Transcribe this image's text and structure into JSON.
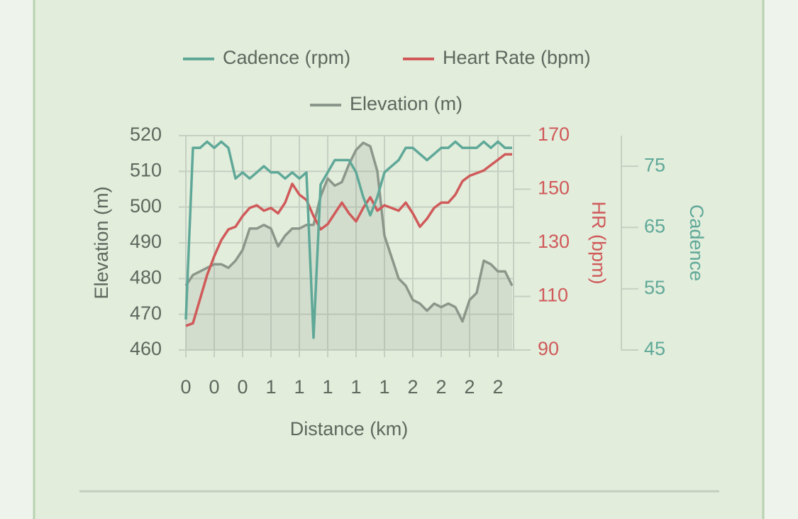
{
  "chart_data": {
    "type": "line",
    "legend": [
      {
        "name": "Cadence (rpm)",
        "color": "#5fa898"
      },
      {
        "name": "Heart Rate (bpm)",
        "color": "#d05a5a"
      },
      {
        "name": "Elevation (m)",
        "color": "#8c978b"
      }
    ],
    "x_label": "Distance (km)",
    "y_label": "Elevation (m)",
    "y2_label": "HR (bpm)",
    "y3_label": "Cadence",
    "grid": true,
    "x": [
      0,
      0.05,
      0.1,
      0.15,
      0.2,
      0.25,
      0.3,
      0.35,
      0.4,
      0.45,
      0.5,
      0.55,
      0.6,
      0.65,
      0.7,
      0.75,
      0.8,
      0.85,
      0.9,
      0.95,
      1.0,
      1.05,
      1.1,
      1.15,
      1.2,
      1.25,
      1.3,
      1.35,
      1.4,
      1.45,
      1.5,
      1.55,
      1.6,
      1.65,
      1.7,
      1.75,
      1.8,
      1.85,
      1.9,
      1.95,
      2.0,
      2.05,
      2.1,
      2.15,
      2.2,
      2.25,
      2.3
    ],
    "xlim": [
      0,
      2.31
    ],
    "xticks": [
      0,
      {
        "value": 0.2,
        "label": "0"
      },
      {
        "value": 0.4,
        "label": "0"
      },
      {
        "value": 0.6,
        "label": "1"
      },
      {
        "value": 0.8,
        "label": "1"
      },
      {
        "value": 1.0,
        "label": "1"
      },
      {
        "value": 1.2,
        "label": "1"
      },
      {
        "value": 1.4,
        "label": "1"
      },
      {
        "value": 1.6,
        "label": "2"
      },
      {
        "value": 1.8,
        "label": "2"
      },
      2,
      {
        "value": 2.2,
        "label": "2"
      }
    ],
    "ylim": [
      460,
      520
    ],
    "yticks": [
      460,
      470,
      480,
      490,
      500,
      510,
      520
    ],
    "y2lim": [
      90,
      170
    ],
    "y2ticks": [
      90,
      110,
      130,
      150,
      170
    ],
    "y3lim": [
      45,
      80
    ],
    "y3ticks": [
      45,
      55,
      65,
      75
    ],
    "series": [
      {
        "name": "Cadence (rpm)",
        "color": "#5fa898",
        "axis": "y3",
        "values": [
          50,
          78,
          78,
          79,
          78,
          79,
          78,
          73,
          74,
          73,
          74,
          75,
          74,
          74,
          73,
          74,
          73,
          74,
          47,
          72,
          74,
          76,
          76,
          76,
          74,
          70,
          67,
          70,
          74,
          75,
          76,
          78,
          78,
          77,
          76,
          77,
          78,
          78,
          79,
          78,
          78,
          78,
          79,
          78,
          79,
          78,
          78
        ]
      },
      {
        "name": "Heart Rate (bpm)",
        "color": "#d05a5a",
        "axis": "y2",
        "values": [
          99,
          100,
          109,
          118,
          125,
          131,
          135,
          136,
          140,
          143,
          144,
          142,
          143,
          141,
          145,
          152,
          148,
          146,
          140,
          135,
          137,
          141,
          145,
          141,
          138,
          143,
          147,
          142,
          144,
          143,
          142,
          145,
          141,
          136,
          139,
          143,
          145,
          145,
          148,
          153,
          155,
          156,
          157,
          159,
          161,
          163,
          163
        ]
      },
      {
        "name": "Elevation (m)",
        "color": "#8c978b",
        "axis": "y",
        "fill": true,
        "values": [
          478,
          481,
          482,
          483,
          484,
          484,
          483,
          485,
          488,
          494,
          494,
          495,
          494,
          489,
          492,
          494,
          494,
          495,
          495,
          503,
          508,
          506,
          507,
          512,
          516,
          518,
          517,
          510,
          492,
          486,
          480,
          478,
          474,
          473,
          471,
          473,
          472,
          473,
          472,
          468,
          474,
          476,
          485,
          484,
          482,
          482,
          478
        ]
      }
    ]
  }
}
